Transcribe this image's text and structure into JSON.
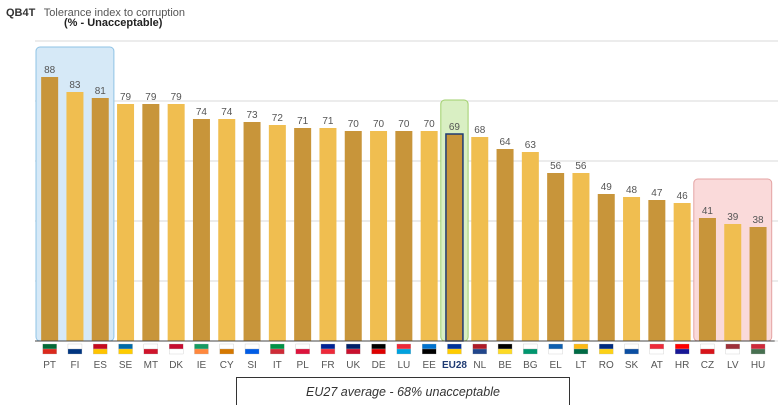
{
  "header": {
    "code": "QB4T",
    "title": "Tolerance index to corruption",
    "subtitle": "(% - Unacceptable)"
  },
  "footnote": "EU27 average -  68% unacceptable",
  "chart_data": {
    "type": "bar",
    "categories": [
      "PT",
      "FI",
      "ES",
      "SE",
      "MT",
      "DK",
      "IE",
      "CY",
      "SI",
      "IT",
      "PL",
      "FR",
      "UK",
      "DE",
      "LU",
      "EE",
      "EU28",
      "NL",
      "BE",
      "BG",
      "EL",
      "LT",
      "RO",
      "SK",
      "AT",
      "HR",
      "CZ",
      "LV",
      "HU"
    ],
    "values": [
      88,
      83,
      81,
      79,
      79,
      79,
      74,
      74,
      73,
      72,
      71,
      71,
      70,
      70,
      70,
      70,
      69,
      68,
      64,
      63,
      56,
      56,
      49,
      48,
      47,
      46,
      41,
      39,
      38
    ],
    "title": "Tolerance index to corruption",
    "subtitle": "(% - Unacceptable)",
    "ylim": [
      0,
      100
    ],
    "grid": true,
    "highlights": {
      "top": [
        "PT",
        "FI",
        "ES"
      ],
      "average": [
        "EU28"
      ],
      "bottom": [
        "CZ",
        "LV",
        "HU"
      ]
    },
    "colors": {
      "dark_bar": "#c8953a",
      "light_bar": "#f0be50",
      "eu_bar": "#c8953a",
      "eu_border": "#1f3b73",
      "top_box": "#d6e9f7",
      "top_box_border": "#8fc3e6",
      "eu_box": "#d9efc3",
      "eu_box_border": "#9fcf6b",
      "bottom_box": "#fadada",
      "bottom_box_border": "#e4a3a3",
      "label": "#555555",
      "grid": "#d9d9d9"
    }
  }
}
